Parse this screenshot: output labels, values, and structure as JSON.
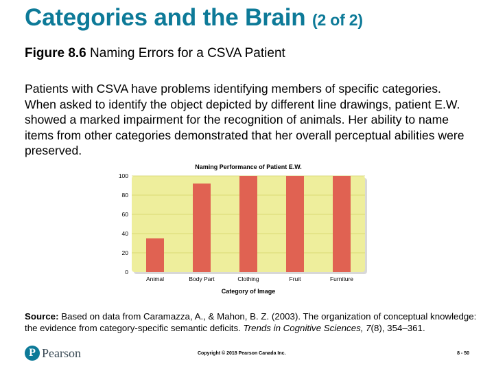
{
  "slide": {
    "title": "Categories and the Brain",
    "title_suffix": "(2 of 2)",
    "figure_label": "Figure 8.6",
    "figure_caption": "Naming Errors for a CSVA Patient",
    "body": "Patients with CSVA have problems identifying members of specific categories. When asked to identify the object depicted by different line drawings, patient E.W. showed a marked impairment for the recognition of animals. Her ability to name items from other categories demonstrated that her overall perceptual abilities were preserved.",
    "source_label": "Source:",
    "source_text_1": "Based on data from Caramazza, A., & Mahon, B. Z. (2003). The organization of conceptual knowledge: the evidence from category-specific semantic deficits.",
    "source_journal": "Trends in Cognitive Sciences, 7",
    "source_text_2": "(8), 354–361.",
    "logo_letter": "P",
    "logo_text": "Pearson",
    "copyright": "Copyright © 2018 Pearson Canada Inc.",
    "page_number": "8 - 50"
  },
  "chart_data": {
    "type": "bar",
    "title": "Naming Performance of Patient E.W.",
    "xlabel": "Category of Image",
    "ylabel": "",
    "categories": [
      "Animal",
      "Body Part",
      "Clothing",
      "Fruit",
      "Furniture"
    ],
    "values": [
      35,
      92,
      100,
      100,
      100
    ],
    "ylim": [
      0,
      100
    ],
    "yticks": [
      0,
      20,
      40,
      60,
      80,
      100
    ],
    "grid": true,
    "bar_color": "#e06252",
    "plot_background": "#eeee9c",
    "grid_color": "#d2d266"
  }
}
